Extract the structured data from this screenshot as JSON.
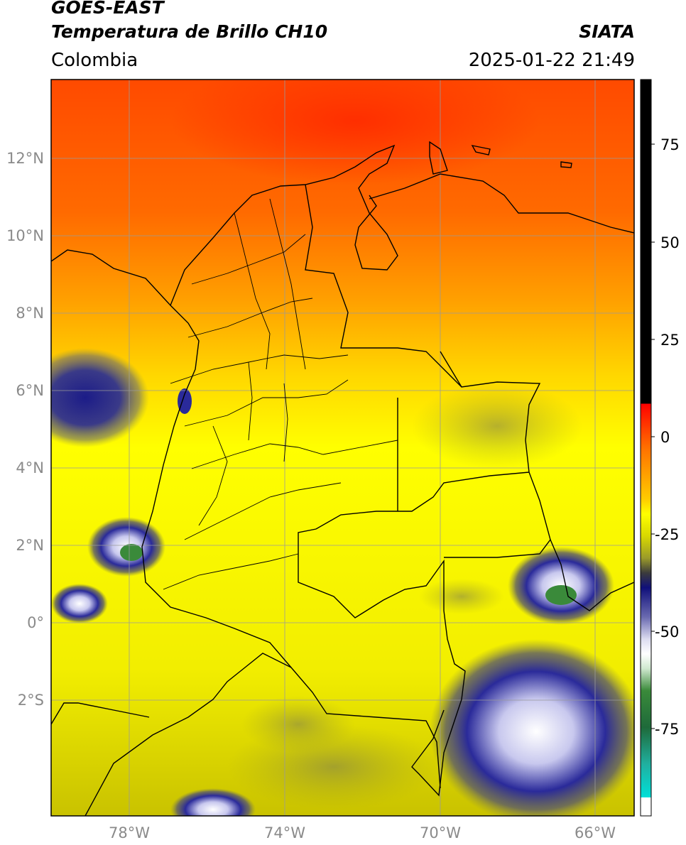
{
  "header": {
    "satellite": "GOES-EAST",
    "product": "Temperatura de Brillo CH10",
    "brand": "SIATA",
    "region": "Colombia",
    "timestamp": "2025-01-22 21:49"
  },
  "map": {
    "lat_ticks": [
      "12°N",
      "10°N",
      "8°N",
      "6°N",
      "4°N",
      "2°N",
      "0°",
      "2°S"
    ],
    "lon_ticks": [
      "78°W",
      "74°W",
      "70°W",
      "66°W"
    ],
    "palette": {
      "warm_top": "#ff3a00",
      "orange": "#ff8c00",
      "yellow": "#ffff00",
      "olive": "#c8c800",
      "navy": "#1a1a8c",
      "white": "#f4f4ff",
      "green": "#3a8a3a"
    }
  },
  "colorbar": {
    "ticks": [
      "75",
      "50",
      "25",
      "0",
      "-25",
      "-50",
      "-75"
    ],
    "stops": [
      {
        "color": "#000000"
      },
      {
        "color": "#000000"
      },
      {
        "color": "#ff0000"
      },
      {
        "color": "#ff7f00"
      },
      {
        "color": "#ffff00"
      },
      {
        "color": "#bcbc00"
      },
      {
        "color": "#3a3a3a"
      },
      {
        "color": "#14147a"
      },
      {
        "color": "#ffffff"
      },
      {
        "color": "#2e7d32"
      },
      {
        "color": "#00e0d0"
      },
      {
        "color": "#ffffff"
      }
    ]
  }
}
